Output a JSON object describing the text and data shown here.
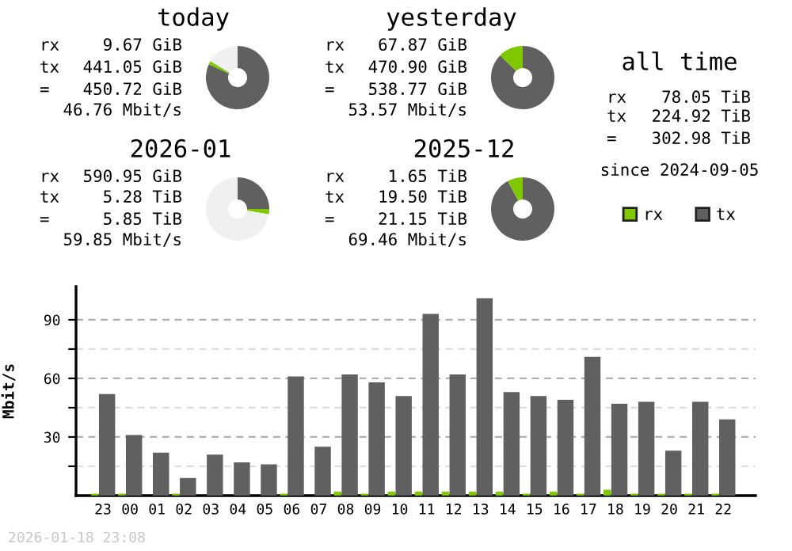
{
  "chart_data": [
    {
      "type": "donut",
      "title": "today",
      "categories": [
        null,
        null,
        null
      ],
      "values": [
        81.9,
        1.8,
        16.3
      ],
      "colors": [
        "#606060",
        "#7fc800",
        "#f0f0f0"
      ],
      "annotations": [
        "rx",
        "9.67 GiB",
        "tx",
        "441.05 GiB",
        "=",
        "450.72 GiB",
        "46.76 Mbit/s"
      ]
    },
    {
      "type": "donut",
      "title": "yesterday",
      "categories": [
        null,
        null
      ],
      "values": [
        87.4,
        12.6
      ],
      "colors": [
        "#606060",
        "#7fc800"
      ],
      "annotations": [
        "rx",
        "67.87 GiB",
        "tx",
        "470.90 GiB",
        "=",
        "538.77 GiB",
        "53.57 Mbit/s"
      ]
    },
    {
      "type": "other",
      "title": "all time",
      "annotations": [
        "rx",
        "78.05 TiB",
        "tx",
        "224.92 TiB",
        "=",
        "302.98 TiB",
        "since 2024-09-05"
      ]
    },
    {
      "type": "donut",
      "title": "2026-01",
      "categories": [
        null,
        null,
        null
      ],
      "values": [
        25.0,
        2.7,
        72.3
      ],
      "colors": [
        "#606060",
        "#7fc800",
        "#f0f0f0"
      ],
      "annotations": [
        "rx",
        "590.95 GiB",
        "tx",
        "5.28 TiB",
        "=",
        "5.85 TiB",
        "59.85 Mbit/s"
      ]
    },
    {
      "type": "donut",
      "title": "2025-12",
      "categories": [
        null,
        null
      ],
      "values": [
        92.2,
        7.8
      ],
      "colors": [
        "#606060",
        "#7fc800"
      ],
      "annotations": [
        "rx",
        "1.65 TiB",
        "tx",
        "19.50 TiB",
        "=",
        "21.15 TiB",
        "69.46 Mbit/s"
      ]
    },
    {
      "type": "bar",
      "ylabel": "Mbit/s",
      "legend": "top right",
      "grid": "y",
      "categories": [
        "23",
        "00",
        "01",
        "02",
        "03",
        "04",
        "05",
        "06",
        "07",
        "08",
        "09",
        "10",
        "11",
        "12",
        "13",
        "14",
        "15",
        "16",
        "17",
        "18",
        "19",
        "20",
        "21",
        "22"
      ],
      "ylim": [
        0,
        107
      ],
      "yticks": [
        {
          "value": 15,
          "label": null
        },
        30,
        {
          "value": 45,
          "label": null
        },
        60,
        {
          "value": 75,
          "label": null
        },
        90
      ],
      "series": [
        {
          "name": "rx",
          "color": "#7fc800",
          "values": [
            1,
            1,
            0,
            1,
            0,
            0,
            0,
            1,
            0,
            2,
            1,
            2,
            2,
            2,
            2,
            2,
            1,
            2,
            1,
            3,
            1,
            1,
            1,
            1
          ]
        },
        {
          "name": "tx",
          "color": "#606060",
          "values": [
            52,
            31,
            22,
            9,
            21,
            17,
            16,
            61,
            25,
            62,
            58,
            51,
            93,
            62,
            101,
            53,
            51,
            49,
            71,
            47,
            48,
            23,
            48,
            39
          ]
        }
      ],
      "annotations": [
        "2026-01-18 23:08"
      ]
    }
  ]
}
